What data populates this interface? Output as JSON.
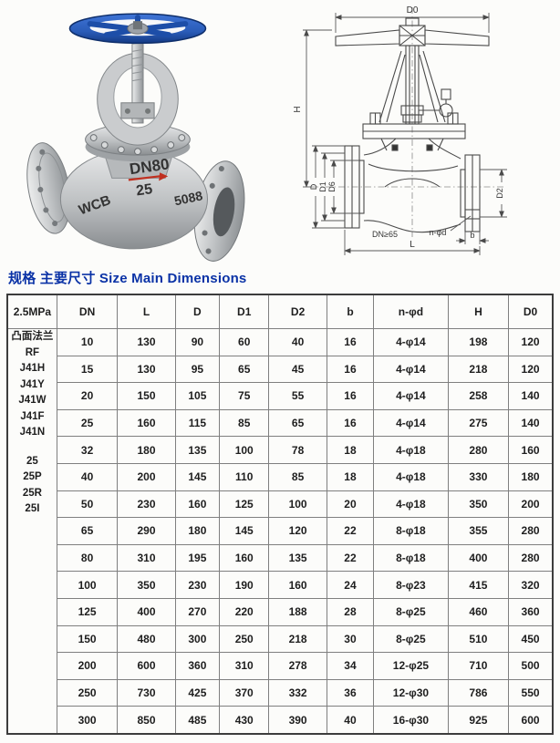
{
  "page": {
    "title": "规格 主要尺寸 Size Main Dimensions",
    "title_color": "#0a32a6",
    "background": "#fcfcfa"
  },
  "photo": {
    "description": "globe valve photo with blue handwheel and grey cast body",
    "handwheel_color": "#2a5cb8",
    "body_color": "#c3c5c7",
    "marking_color": "#c03020",
    "markings": {
      "size": "DN80",
      "rating": "25",
      "material": "WCB",
      "code": "5088"
    }
  },
  "drawing": {
    "description": "sectional dimension drawing of flanged globe valve",
    "labels": {
      "top_diameter": "D0",
      "height": "H",
      "flange_od": "D",
      "bolt_circle": "D1",
      "raised_face": "D6",
      "outlet_flange": "D2",
      "bore_note": "DN≥65",
      "bolt_holes": "n-φd",
      "flange_thickness": "b",
      "length": "L"
    }
  },
  "table": {
    "pressure_label": "2.5MPa",
    "columns": [
      "DN",
      "L",
      "D",
      "D1",
      "D2",
      "b",
      "n-φd",
      "H",
      "D0"
    ],
    "side_labels": [
      "凸面法兰",
      "RF",
      "J41H",
      "J41Y",
      "J41W",
      "J41F",
      "J41N",
      "",
      "25",
      "25P",
      "25R",
      "25I"
    ],
    "rows": [
      [
        "10",
        "130",
        "90",
        "60",
        "40",
        "16",
        "4-φ14",
        "198",
        "120"
      ],
      [
        "15",
        "130",
        "95",
        "65",
        "45",
        "16",
        "4-φ14",
        "218",
        "120"
      ],
      [
        "20",
        "150",
        "105",
        "75",
        "55",
        "16",
        "4-φ14",
        "258",
        "140"
      ],
      [
        "25",
        "160",
        "115",
        "85",
        "65",
        "16",
        "4-φ14",
        "275",
        "140"
      ],
      [
        "32",
        "180",
        "135",
        "100",
        "78",
        "18",
        "4-φ18",
        "280",
        "160"
      ],
      [
        "40",
        "200",
        "145",
        "110",
        "85",
        "18",
        "4-φ18",
        "330",
        "180"
      ],
      [
        "50",
        "230",
        "160",
        "125",
        "100",
        "20",
        "4-φ18",
        "350",
        "200"
      ],
      [
        "65",
        "290",
        "180",
        "145",
        "120",
        "22",
        "8-φ18",
        "355",
        "280"
      ],
      [
        "80",
        "310",
        "195",
        "160",
        "135",
        "22",
        "8-φ18",
        "400",
        "280"
      ],
      [
        "100",
        "350",
        "230",
        "190",
        "160",
        "24",
        "8-φ23",
        "415",
        "320"
      ],
      [
        "125",
        "400",
        "270",
        "220",
        "188",
        "28",
        "8-φ25",
        "460",
        "360"
      ],
      [
        "150",
        "480",
        "300",
        "250",
        "218",
        "30",
        "8-φ25",
        "510",
        "450"
      ],
      [
        "200",
        "600",
        "360",
        "310",
        "278",
        "34",
        "12-φ25",
        "710",
        "500"
      ],
      [
        "250",
        "730",
        "425",
        "370",
        "332",
        "36",
        "12-φ30",
        "786",
        "550"
      ],
      [
        "300",
        "850",
        "485",
        "430",
        "390",
        "40",
        "16-φ30",
        "925",
        "600"
      ]
    ]
  }
}
